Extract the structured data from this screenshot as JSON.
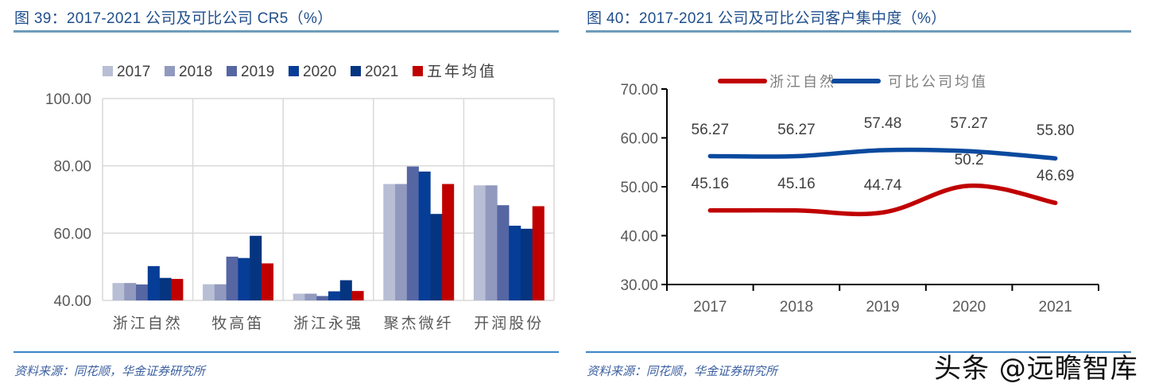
{
  "left": {
    "title": "图 39：2017-2021 公司及可比公司 CR5（%）",
    "source": "资料来源：同花顺，华金证券研究所"
  },
  "right": {
    "title": "图 40：2017-2021 公司及可比公司客户集中度（%）",
    "source": "资料来源：同花顺，华金证券研究所"
  },
  "watermark": "头条 @远瞻智库",
  "chart_data": [
    {
      "type": "bar",
      "title": "图 39：2017-2021 公司及可比公司 CR5（%）",
      "xlabel": "",
      "ylabel": "",
      "ylim": [
        40,
        100
      ],
      "yticks": [
        "100.00",
        "80.00",
        "60.00",
        "40.00"
      ],
      "grid": true,
      "legend_position": "top",
      "categories": [
        "浙江自然",
        "牧高笛",
        "浙江永强",
        "聚杰微纤",
        "开润股份"
      ],
      "series": [
        {
          "name": "2017",
          "color": "#B8BED4",
          "values": [
            45.16,
            44.8,
            42.0,
            74.6,
            74.2
          ]
        },
        {
          "name": "2018",
          "color": "#9199BE",
          "values": [
            45.16,
            44.8,
            42.0,
            74.6,
            74.2
          ]
        },
        {
          "name": "2019",
          "color": "#5566A3",
          "values": [
            44.74,
            53.0,
            41.3,
            79.8,
            68.3
          ]
        },
        {
          "name": "2020",
          "color": "#063D96",
          "values": [
            50.2,
            52.6,
            42.7,
            78.3,
            62.2
          ]
        },
        {
          "name": "2021",
          "color": "#053580",
          "values": [
            46.69,
            59.2,
            46.0,
            65.7,
            61.3
          ]
        },
        {
          "name": "五年均值",
          "color": "#C00000",
          "values": [
            46.39,
            51.0,
            42.8,
            74.6,
            68.0
          ]
        }
      ]
    },
    {
      "type": "line",
      "title": "图 40：2017-2021 公司及可比公司客户集中度（%）",
      "xlabel": "",
      "ylabel": "",
      "ylim": [
        30,
        70
      ],
      "yticks": [
        "70.00",
        "60.00",
        "50.00",
        "40.00",
        "30.00"
      ],
      "grid": false,
      "legend_position": "top",
      "x": [
        "2017",
        "2018",
        "2019",
        "2020",
        "2021"
      ],
      "series": [
        {
          "name": "浙江自然",
          "color": "#C00000",
          "values": [
            45.16,
            45.16,
            44.74,
            50.2,
            46.69
          ],
          "labels": [
            "45.16",
            "45.16",
            "44.74",
            "50.2",
            "46.69"
          ]
        },
        {
          "name": "可比公司均值",
          "color": "#0B4A9E",
          "values": [
            56.27,
            56.27,
            57.48,
            57.27,
            55.8
          ],
          "labels": [
            "56.27",
            "56.27",
            "57.48",
            "57.27",
            "55.80"
          ]
        }
      ]
    }
  ]
}
